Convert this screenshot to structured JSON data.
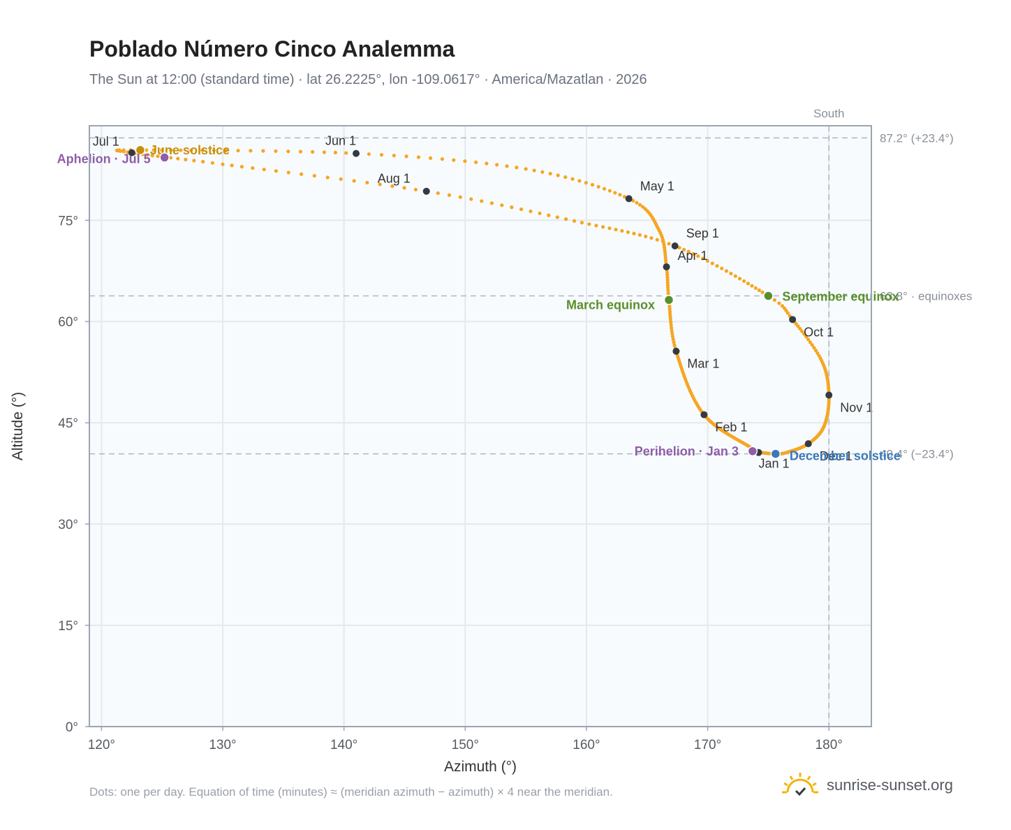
{
  "title": "Poblado Número Cinco Analemma",
  "subtitle": "The Sun at 12:00 (standard time) · lat 26.2225°, lon -109.0617° · America/Mazatlan · 2026",
  "footnote": "Dots: one per day. Equation of time (minutes) ≈ (meridian azimuth − azimuth) × 4 near the meridian.",
  "brand": {
    "name": "sunrise-sunset.org",
    "logo_icon": "sun-check-icon"
  },
  "colors": {
    "path": "#f5a623",
    "month_marker": "#333a44",
    "june_solstice": "#c8900a",
    "aphelion": "#8e5ea8",
    "perihelion": "#8e5ea8",
    "equinox": "#5a8f2e",
    "december_solstice": "#3a78b8",
    "reference_line": "#aab7c4",
    "plot_bg": "#f8fbfd",
    "grid": "#e4e9ee",
    "frame": "#9aa5b2",
    "brand_sun": "#f2b50d"
  },
  "chart_data": {
    "type": "scatter",
    "title": "Poblado Número Cinco Analemma",
    "xlabel": "Azimuth (°)",
    "ylabel": "Altitude (°)",
    "xlim": [
      119,
      183.5
    ],
    "ylim": [
      0,
      89
    ],
    "grid": true,
    "x_ticks": [
      120,
      130,
      140,
      150,
      160,
      170,
      180
    ],
    "x_tick_labels": [
      "120°",
      "130°",
      "140°",
      "150°",
      "160°",
      "170°",
      "180°"
    ],
    "y_ticks": [
      0,
      15,
      30,
      45,
      60,
      75
    ],
    "y_tick_labels": [
      "0°",
      "15°",
      "30°",
      "45°",
      "60°",
      "75°"
    ],
    "reference_lines": {
      "meridian": {
        "x": 180,
        "label": "South"
      },
      "horizontal": [
        {
          "y": 87.2,
          "label": "87.2° (+23.4°)"
        },
        {
          "y": 63.8,
          "label": "63.8° · equinoxes"
        },
        {
          "y": 40.4,
          "label": "40.4° (−23.4°)"
        }
      ]
    },
    "path_anchors": [
      {
        "doy": 1,
        "az": 174.2,
        "alt": 40.6
      },
      {
        "doy": 32,
        "az": 169.7,
        "alt": 46.2
      },
      {
        "doy": 60,
        "az": 167.4,
        "alt": 55.6
      },
      {
        "doy": 79,
        "az": 166.8,
        "alt": 63.2
      },
      {
        "doy": 91,
        "az": 166.6,
        "alt": 68.1
      },
      {
        "doy": 106,
        "az": 166.0,
        "alt": 73.5
      },
      {
        "doy": 121,
        "az": 163.5,
        "alt": 78.2
      },
      {
        "doy": 137,
        "az": 155.0,
        "alt": 82.6
      },
      {
        "doy": 152,
        "az": 141.0,
        "alt": 84.9
      },
      {
        "doy": 172,
        "az": 123.2,
        "alt": 85.4
      },
      {
        "doy": 182,
        "az": 122.5,
        "alt": 85.0
      },
      {
        "doy": 196,
        "az": 130.0,
        "alt": 83.3
      },
      {
        "doy": 213,
        "az": 146.8,
        "alt": 79.3
      },
      {
        "doy": 228,
        "az": 159.0,
        "alt": 74.9
      },
      {
        "doy": 244,
        "az": 167.3,
        "alt": 71.2
      },
      {
        "doy": 266,
        "az": 175.0,
        "alt": 63.8
      },
      {
        "doy": 274,
        "az": 177.0,
        "alt": 60.3
      },
      {
        "doy": 290,
        "az": 179.4,
        "alt": 54.2
      },
      {
        "doy": 305,
        "az": 180.0,
        "alt": 49.1
      },
      {
        "doy": 320,
        "az": 179.6,
        "alt": 44.5
      },
      {
        "doy": 335,
        "az": 178.3,
        "alt": 41.9
      },
      {
        "doy": 348,
        "az": 176.5,
        "alt": 40.6
      },
      {
        "doy": 355,
        "az": 175.6,
        "alt": 40.4
      },
      {
        "doy": 365,
        "az": 174.3,
        "alt": 40.6
      }
    ],
    "month_markers": [
      {
        "label": "Jan 1",
        "az": 174.2,
        "alt": 40.6
      },
      {
        "label": "Feb 1",
        "az": 169.7,
        "alt": 46.2
      },
      {
        "label": "Mar 1",
        "az": 167.4,
        "alt": 55.6
      },
      {
        "label": "Apr 1",
        "az": 166.6,
        "alt": 68.1
      },
      {
        "label": "May 1",
        "az": 163.5,
        "alt": 78.2
      },
      {
        "label": "Jun 1",
        "az": 141.0,
        "alt": 84.9
      },
      {
        "label": "Jul 1",
        "az": 122.5,
        "alt": 85.0
      },
      {
        "label": "Aug 1",
        "az": 146.8,
        "alt": 79.3
      },
      {
        "label": "Sep 1",
        "az": 167.3,
        "alt": 71.2
      },
      {
        "label": "Oct 1",
        "az": 177.0,
        "alt": 60.3
      },
      {
        "label": "Nov 1",
        "az": 180.0,
        "alt": 49.1
      },
      {
        "label": "Dec 1",
        "az": 178.3,
        "alt": 41.9
      }
    ],
    "events": [
      {
        "label": "June solstice",
        "az": 123.2,
        "alt": 85.4,
        "color_key": "june_solstice"
      },
      {
        "label": "Aphelion · Jul 5",
        "az": 125.2,
        "alt": 84.3,
        "color_key": "aphelion"
      },
      {
        "label": "March equinox",
        "az": 166.8,
        "alt": 63.2,
        "color_key": "equinox"
      },
      {
        "label": "September equinox",
        "az": 175.0,
        "alt": 63.8,
        "color_key": "equinox"
      },
      {
        "label": "Perihelion · Jan 3",
        "az": 173.7,
        "alt": 40.8,
        "color_key": "perihelion"
      },
      {
        "label": "December solstice",
        "az": 175.6,
        "alt": 40.4,
        "color_key": "december_solstice"
      }
    ]
  }
}
